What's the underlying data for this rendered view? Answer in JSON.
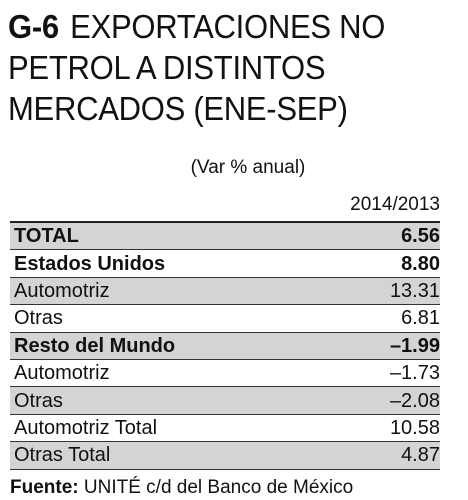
{
  "title": {
    "number": "G-6",
    "line1": "EXPORTACIONES NO",
    "line2": "PETROL A DISTINTOS",
    "line3": "MERCADOS (ENE-SEP)"
  },
  "subtitle": "(Var % anual)",
  "column_header": "2014/2013",
  "rows": [
    {
      "label": "TOTAL",
      "value": "6.56"
    },
    {
      "label": "Estados Unidos",
      "value": "8.80"
    },
    {
      "label": "Automotriz",
      "value": "13.31"
    },
    {
      "label": "Otras",
      "value": "6.81"
    },
    {
      "label": "Resto del Mundo",
      "value": "–1.99"
    },
    {
      "label": "Automotriz",
      "value": "–1.73"
    },
    {
      "label": "Otras",
      "value": "–2.08"
    },
    {
      "label": "Automotriz Total",
      "value": "10.58"
    },
    {
      "label": "Otras Total",
      "value": "4.87"
    }
  ],
  "source": {
    "label": "Fuente:",
    "text": " UNITÉ c/d del Banco de México"
  },
  "colors": {
    "row_shade": "#d4d4d4",
    "text": "#111111"
  }
}
